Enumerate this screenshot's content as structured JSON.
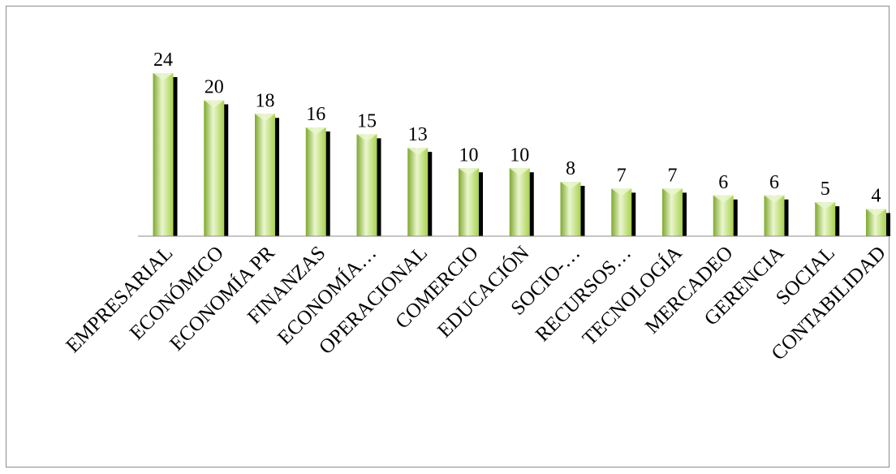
{
  "chart_data": {
    "type": "bar",
    "title": "",
    "xlabel": "",
    "ylabel": "",
    "ylim": [
      0,
      24
    ],
    "grid": false,
    "legend": "none",
    "bar_color": "#a8d14e",
    "bar_light": "#eaf6cf",
    "bar_dark": "#7fa82e",
    "shadow_color": "#000000",
    "axis_color": "#8c8c8c",
    "categories": [
      "EMPRESARIAL",
      "ECONÓMICO",
      "ECONOMÍA PR",
      "FINANZAS",
      "ECONOMÍA…",
      "OPERACIONAL",
      "COMERCIO",
      "EDUCACIÓN",
      "SOCIO-…",
      "RECURSOS…",
      "TECNOLOGÍA",
      "MERCADEO",
      "GERENCIA",
      "SOCIAL",
      "CONTABILIDAD"
    ],
    "values": [
      24,
      20,
      18,
      16,
      15,
      13,
      10,
      10,
      8,
      7,
      7,
      6,
      6,
      5,
      4
    ]
  }
}
